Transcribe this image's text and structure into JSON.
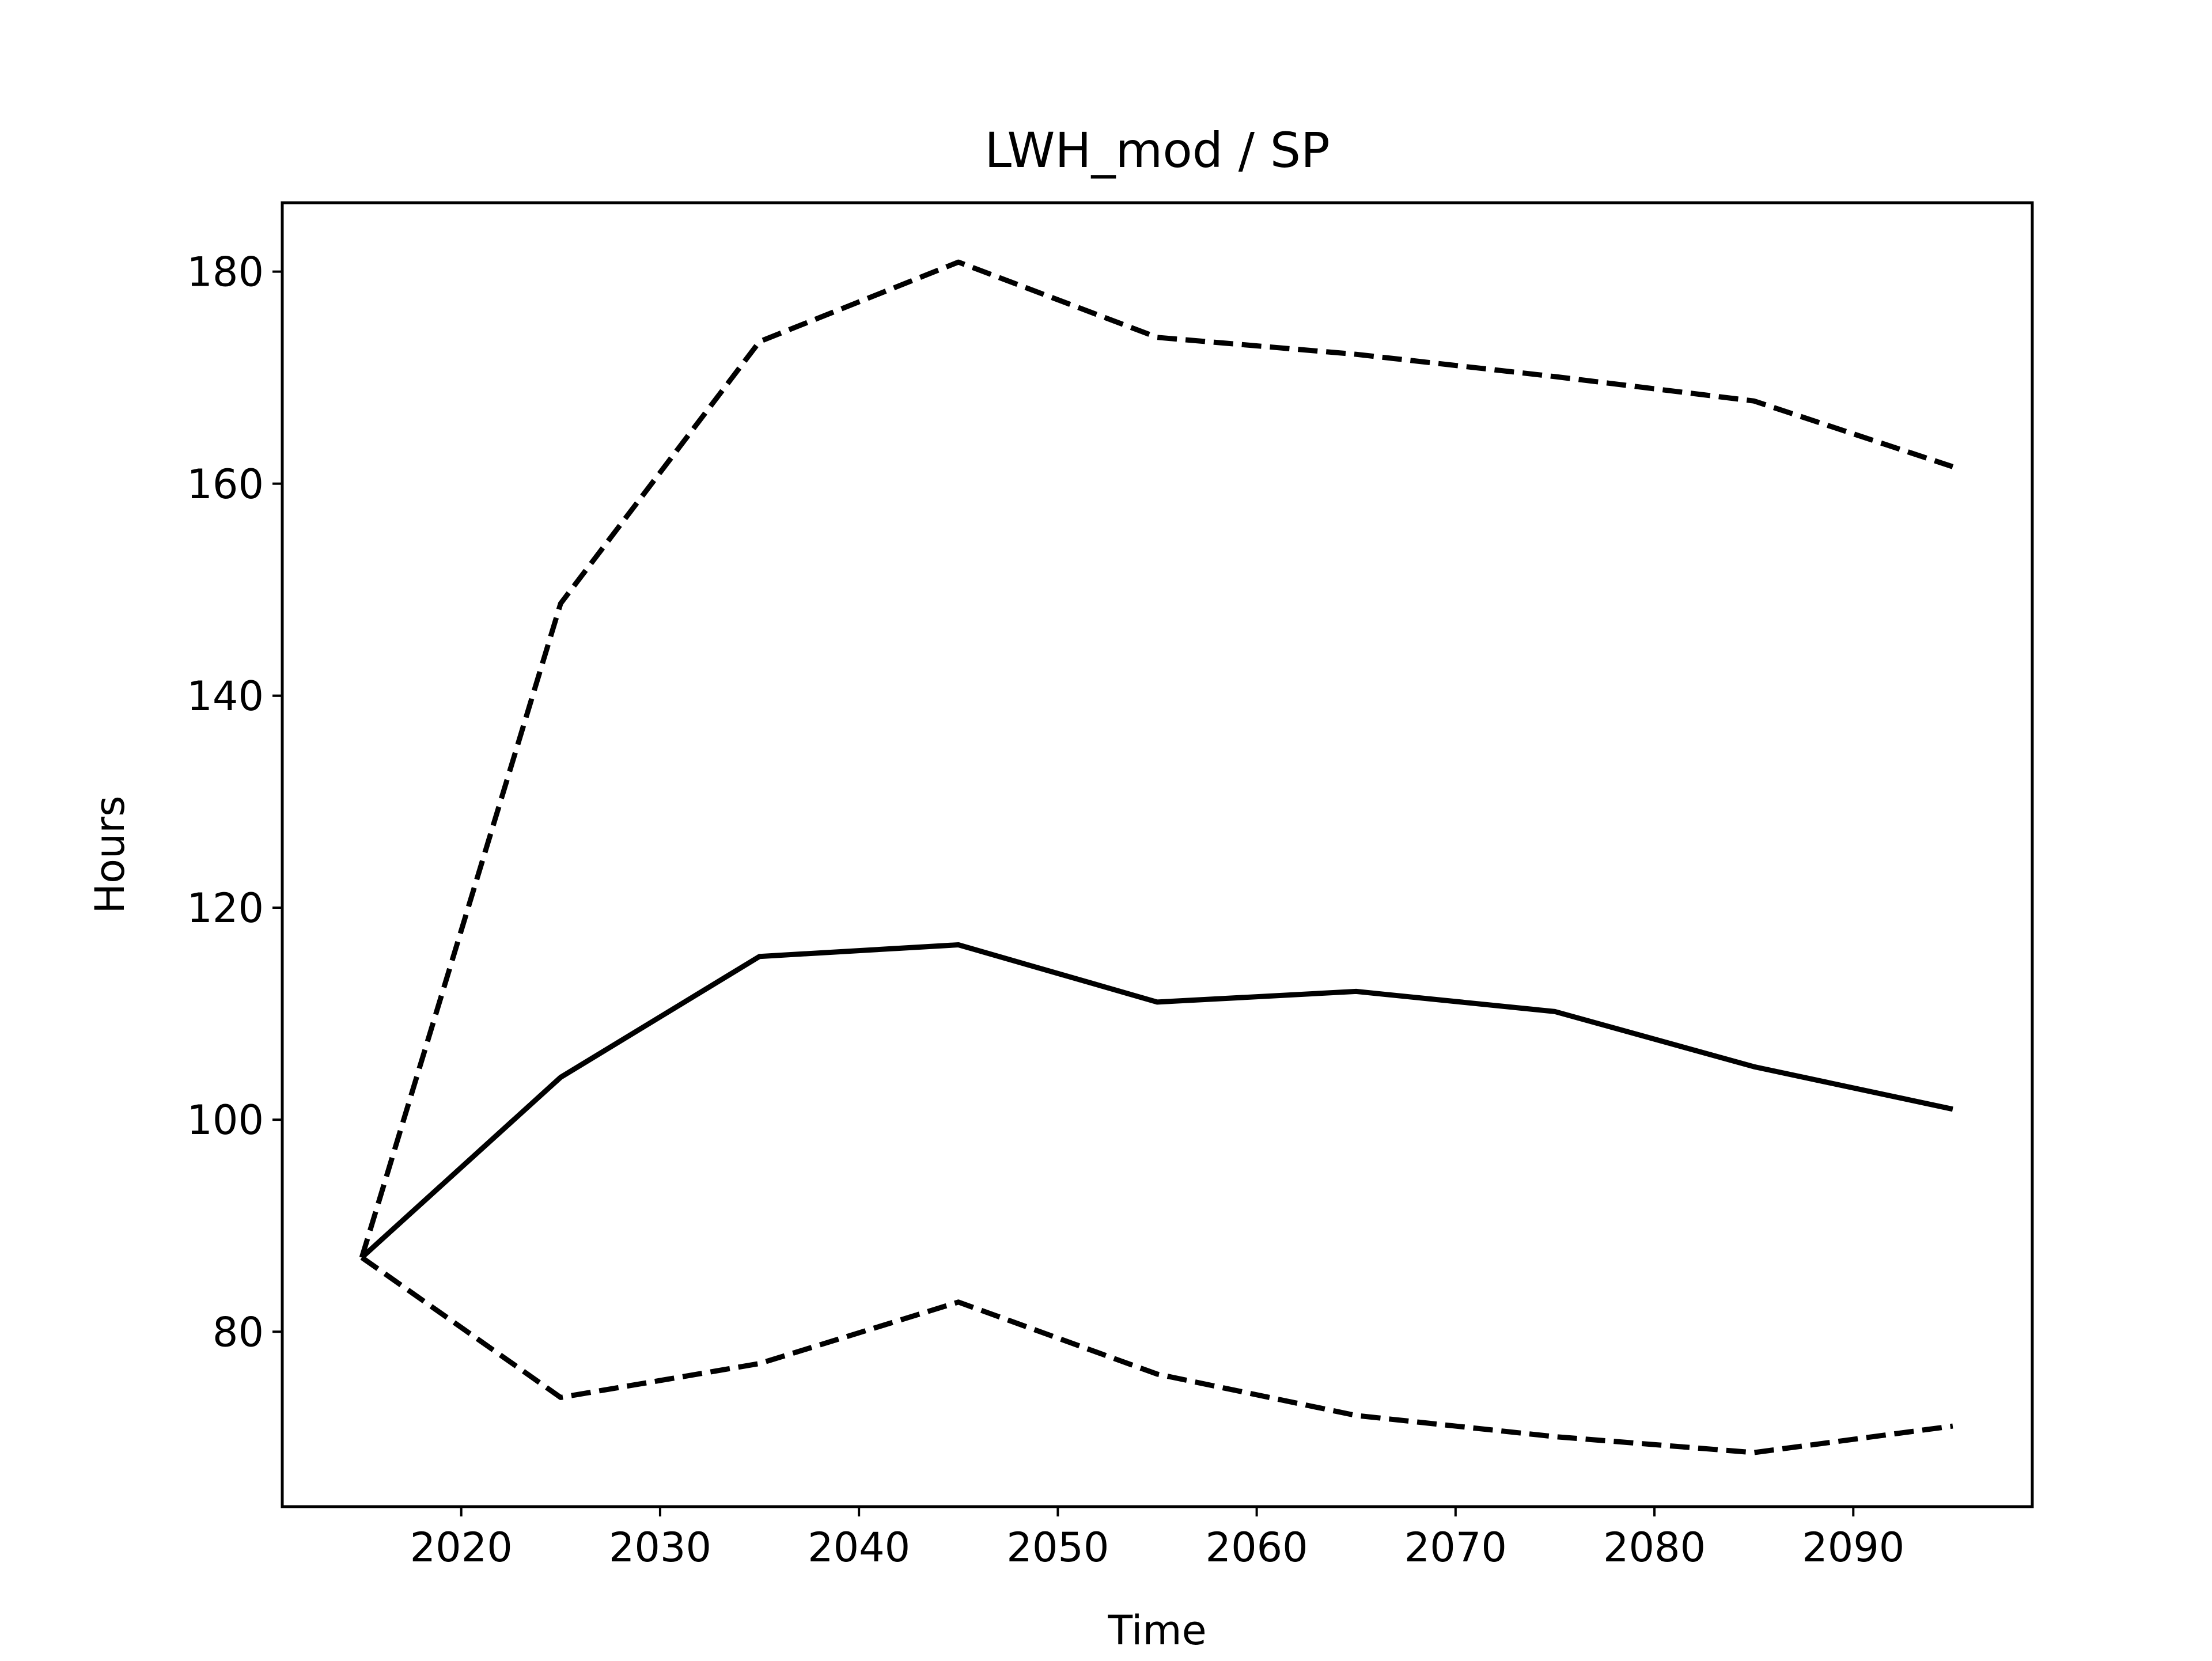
{
  "chart_data": {
    "type": "line",
    "title": "LWH_mod / SP",
    "xlabel": "Time",
    "ylabel": "Hours",
    "xlim": [
      2011,
      2099
    ],
    "ylim": [
      63.5,
      186.5
    ],
    "xticks": [
      2020,
      2030,
      2040,
      2050,
      2060,
      2070,
      2080,
      2090
    ],
    "yticks": [
      80,
      100,
      120,
      140,
      160,
      180
    ],
    "grid": false,
    "x": [
      2015,
      2025,
      2035,
      2045,
      2055,
      2065,
      2075,
      2085,
      2095
    ],
    "series": [
      {
        "style": "solid",
        "color": "#000000",
        "values": [
          87,
          104,
          115.4,
          116.5,
          111.1,
          112.1,
          110.2,
          105,
          101
        ]
      },
      {
        "style": "dashed",
        "color": "#000000",
        "values": [
          87,
          148.7,
          173.4,
          180.9,
          173.8,
          172.2,
          170.1,
          167.8,
          161.6
        ]
      },
      {
        "style": "dashed",
        "color": "#000000",
        "values": [
          87,
          73.8,
          77,
          82.8,
          76,
          72.1,
          70.1,
          68.6,
          71.1
        ]
      }
    ]
  }
}
